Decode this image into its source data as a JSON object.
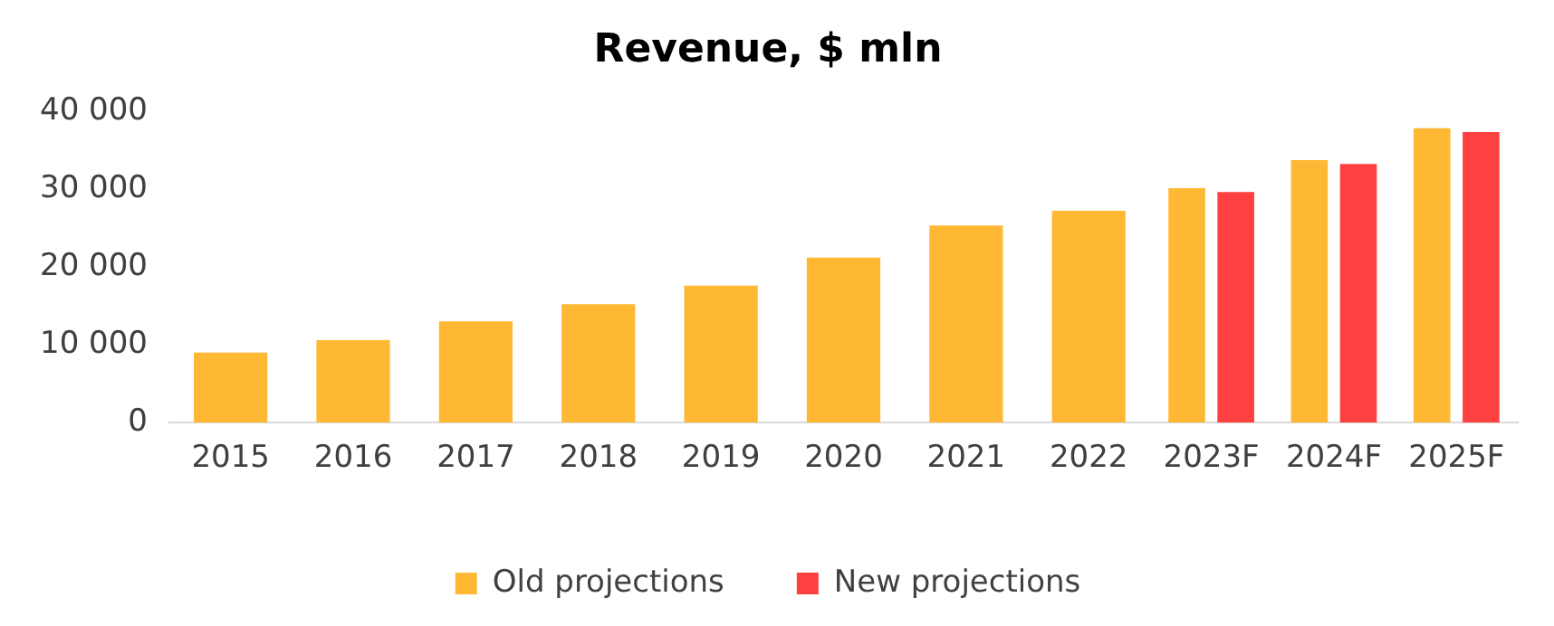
{
  "chart_data": {
    "type": "bar",
    "title": "Revenue, $ mln",
    "categories": [
      "2015",
      "2016",
      "2017",
      "2018",
      "2019",
      "2020",
      "2021",
      "2022",
      "2023F",
      "2024F",
      "2025F"
    ],
    "series": [
      {
        "name": "Old projections",
        "color": "#ffb833",
        "values": [
          9000,
          10600,
          13000,
          15200,
          17600,
          21200,
          25300,
          27200,
          30100,
          33700,
          37800
        ]
      },
      {
        "name": "New projections",
        "color": "#ff4040",
        "values": [
          null,
          null,
          null,
          null,
          null,
          null,
          null,
          null,
          29600,
          33200,
          37300
        ]
      }
    ],
    "ylim": [
      0,
      40000
    ],
    "yticks": [
      {
        "value": 0,
        "label": "0"
      },
      {
        "value": 10000,
        "label": "10 000"
      },
      {
        "value": 20000,
        "label": "20 000"
      },
      {
        "value": 30000,
        "label": "30 000"
      },
      {
        "value": 40000,
        "label": "40 000"
      }
    ],
    "grid": false,
    "legend": "bottom"
  }
}
